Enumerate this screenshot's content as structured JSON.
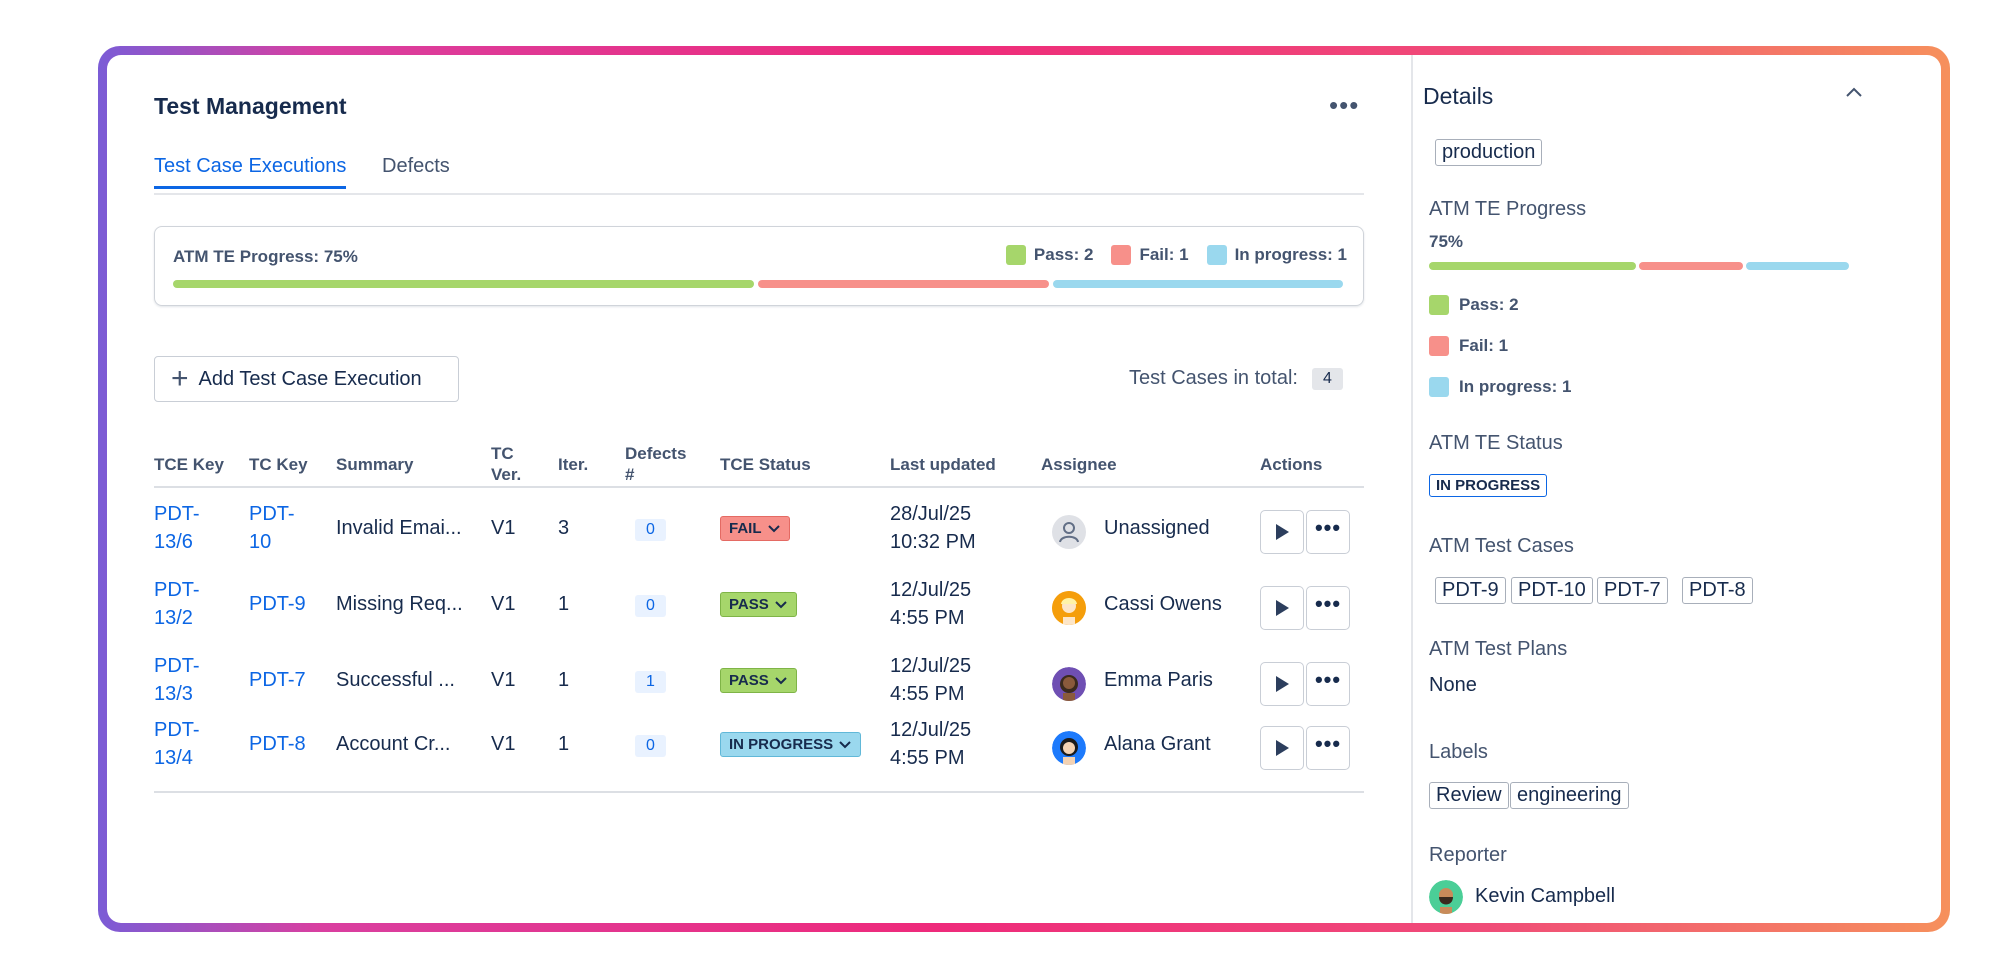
{
  "panel": {
    "title": "Test Management",
    "more_label": "•••"
  },
  "tabs": [
    {
      "label": "Test Case Executions"
    },
    {
      "label": "Defects"
    }
  ],
  "progress": {
    "label": "ATM TE Progress: 75%",
    "percent": 75,
    "pass_label": "Pass: 2",
    "fail_label": "Fail: 1",
    "inprog_label": "In progress: 1",
    "pass": 2,
    "fail": 1,
    "in_progress": 1,
    "colors": {
      "pass": "#a6d66b",
      "fail": "#f7908a",
      "in_progress": "#9ad8ee"
    }
  },
  "toolbar": {
    "add_label": "Add Test Case Execution",
    "total_label": "Test Cases in total:",
    "total_count": "4"
  },
  "table": {
    "headers": {
      "tce_key": "TCE Key",
      "tc_key": "TC Key",
      "summary": "Summary",
      "tc_ver": "TC Ver.",
      "iter": "Iter.",
      "defects": "Defects #",
      "status": "TCE Status",
      "updated": "Last updated",
      "assignee": "Assignee",
      "actions": "Actions"
    },
    "rows": [
      {
        "tce_key": "PDT-13/6",
        "tc_key": "PDT-10",
        "summary": "Invalid Emai...",
        "ver": "V1",
        "iter": "3",
        "defects": "0",
        "status": "FAIL",
        "updated_date": "28/Jul/25",
        "updated_time": "10:32 PM",
        "assignee": "Unassigned"
      },
      {
        "tce_key": "PDT-13/2",
        "tc_key": "PDT-9",
        "summary": "Missing Req...",
        "ver": "V1",
        "iter": "1",
        "defects": "0",
        "status": "PASS",
        "updated_date": "12/Jul/25",
        "updated_time": "4:55 PM",
        "assignee": "Cassi Owens"
      },
      {
        "tce_key": "PDT-13/3",
        "tc_key": "PDT-7",
        "summary": "Successful ...",
        "ver": "V1",
        "iter": "1",
        "defects": "1",
        "status": "PASS",
        "updated_date": "12/Jul/25",
        "updated_time": "4:55 PM",
        "assignee": "Emma Paris"
      },
      {
        "tce_key": "PDT-13/4",
        "tc_key": "PDT-8",
        "summary": "Account Cr...",
        "ver": "V1",
        "iter": "1",
        "defects": "0",
        "status": "IN PROGRESS",
        "updated_date": "12/Jul/25",
        "updated_time": "4:55 PM",
        "assignee": "Alana Grant"
      }
    ]
  },
  "details": {
    "title": "Details",
    "environment": "production",
    "progress_label": "ATM TE Progress",
    "progress_value": "75%",
    "pass_label": "Pass: 2",
    "fail_label": "Fail: 1",
    "inprog_label": "In progress: 1",
    "status_label": "ATM TE Status",
    "status_value": "IN PROGRESS",
    "test_cases_label": "ATM Test Cases",
    "test_cases": [
      "PDT-9",
      "PDT-10",
      "PDT-7",
      "PDT-8"
    ],
    "test_plans_label": "ATM Test Plans",
    "test_plans_value": "None",
    "labels_label": "Labels",
    "labels": [
      "Review",
      "engineering"
    ],
    "reporter_label": "Reporter",
    "reporter": "Kevin Campbell"
  }
}
